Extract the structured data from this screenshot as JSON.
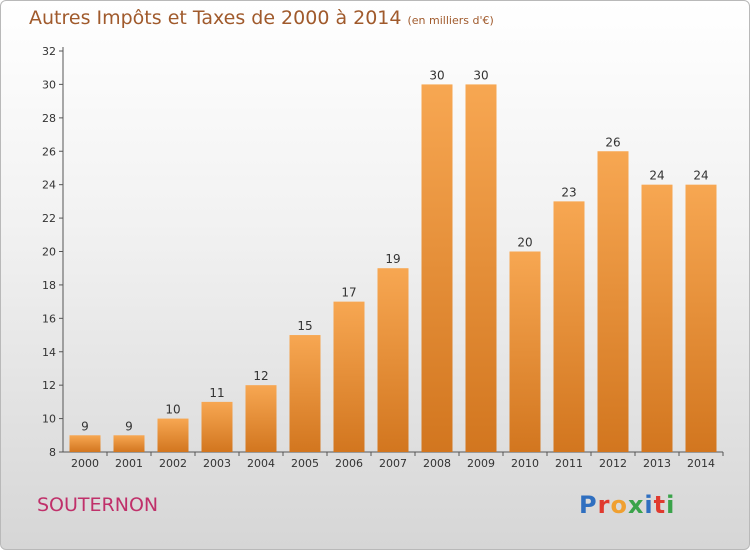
{
  "title": "Autres Impôts et Taxes de 2000 à 2014",
  "subtitle": "(en milliers d'€)",
  "town": "SOUTERNON",
  "logo": {
    "text": "Proxiti",
    "letters": [
      "P",
      "r",
      "o",
      "x",
      "i",
      "t",
      "i"
    ],
    "colors": [
      "#2f6fc0",
      "#e03a2f",
      "#f0a030",
      "#3aa34a",
      "#2f6fc0",
      "#e03a2f",
      "#3aa34a"
    ]
  },
  "colors": {
    "bar_top": "#f7a752",
    "bar_bottom": "#d2761f",
    "axis": "#555555",
    "grid": "#cccccc"
  },
  "chart_data": {
    "type": "bar",
    "title": "Autres Impôts et Taxes de 2000 à 2014",
    "xlabel": "",
    "ylabel": "",
    "categories": [
      "2000",
      "2001",
      "2002",
      "2003",
      "2004",
      "2005",
      "2006",
      "2007",
      "2008",
      "2009",
      "2010",
      "2011",
      "2012",
      "2013",
      "2014"
    ],
    "values": [
      9,
      9,
      10,
      11,
      12,
      15,
      17,
      19,
      30,
      30,
      20,
      23,
      26,
      24,
      24
    ],
    "ylim": [
      8,
      32
    ],
    "yticks": [
      8,
      10,
      12,
      14,
      16,
      18,
      20,
      22,
      24,
      26,
      28,
      30,
      32
    ],
    "grid": false,
    "legend": "none"
  }
}
